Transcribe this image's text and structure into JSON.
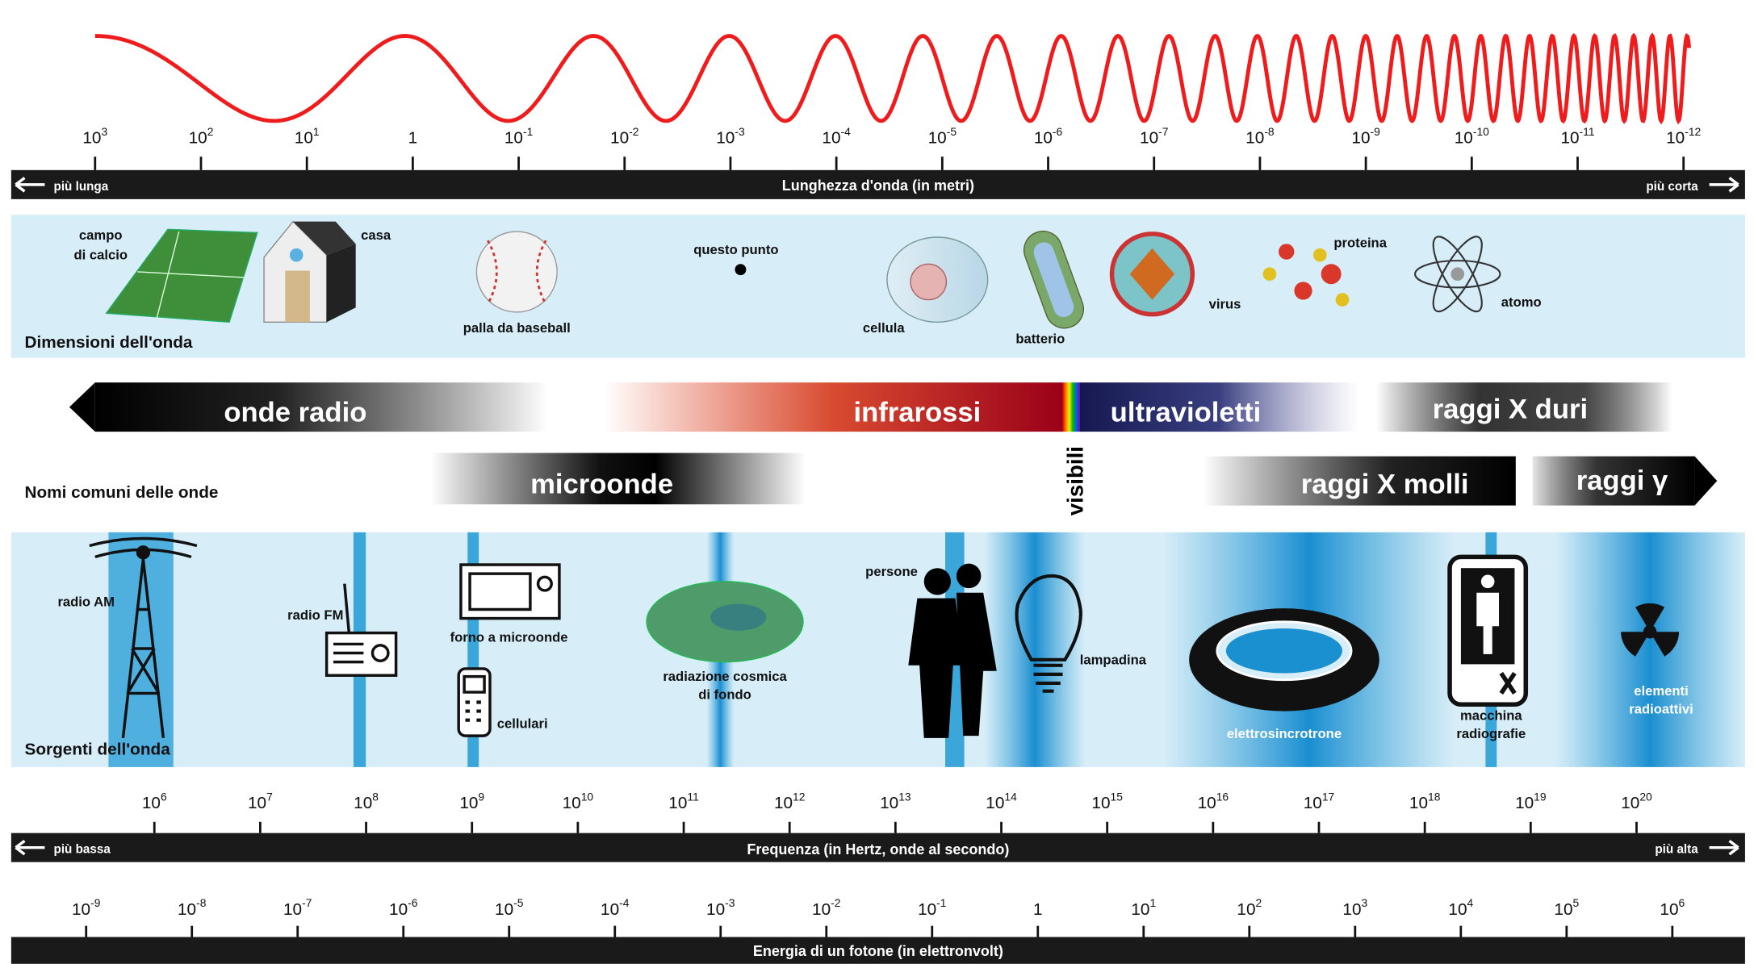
{
  "wavelength": {
    "ticks": [
      {
        "base": "10",
        "exp": "3"
      },
      {
        "base": "10",
        "exp": "2"
      },
      {
        "base": "10",
        "exp": "1"
      },
      {
        "base": "1"
      },
      {
        "base": "10",
        "exp": "-1"
      },
      {
        "base": "10",
        "exp": "-2"
      },
      {
        "base": "10",
        "exp": "-3"
      },
      {
        "base": "10",
        "exp": "-4"
      },
      {
        "base": "10",
        "exp": "-5"
      },
      {
        "base": "10",
        "exp": "-6"
      },
      {
        "base": "10",
        "exp": "-7"
      },
      {
        "base": "10",
        "exp": "-8"
      },
      {
        "base": "10",
        "exp": "-9"
      },
      {
        "base": "10",
        "exp": "-10"
      },
      {
        "base": "10",
        "exp": "-11"
      },
      {
        "base": "10",
        "exp": "-12"
      }
    ],
    "left": "più lunga",
    "title": "Lunghezza d'onda (in metri)",
    "right": "più corta"
  },
  "sizes": {
    "title": "Dimensioni dell'onda",
    "field": [
      "campo",
      "di calcio"
    ],
    "house": "casa",
    "ball": "palla da baseball",
    "dot": "questo punto",
    "cell": "cellula",
    "bacterium": "batterio",
    "virus": "virus",
    "protein": "proteina",
    "atom": "atomo"
  },
  "names": {
    "title": "Nomi comuni delle onde",
    "radio": "onde radio",
    "infrared": "infrarossi",
    "visible": "visibili",
    "ultraviolet": "ultravioletti",
    "hard_x": "raggi X duri",
    "microwave": "microonde",
    "soft_x": "raggi X molli",
    "gamma": "raggi γ"
  },
  "sources": {
    "title": "Sorgenti dell'onda",
    "am": "radio AM",
    "fm": "radio FM",
    "microwave_oven": "forno a microonde",
    "phones": "cellulari",
    "cmb": [
      "radiazione cosmica",
      "di fondo"
    ],
    "people": "persone",
    "bulb": "lampadina",
    "synchrotron": "elettrosincrotrone",
    "xray": [
      "macchina",
      "radiografie"
    ],
    "radioactive": [
      "elementi",
      "radioattivi"
    ]
  },
  "frequency": {
    "ticks": [
      {
        "base": "10",
        "exp": "6"
      },
      {
        "base": "10",
        "exp": "7"
      },
      {
        "base": "10",
        "exp": "8"
      },
      {
        "base": "10",
        "exp": "9"
      },
      {
        "base": "10",
        "exp": "10"
      },
      {
        "base": "10",
        "exp": "11"
      },
      {
        "base": "10",
        "exp": "12"
      },
      {
        "base": "10",
        "exp": "13"
      },
      {
        "base": "10",
        "exp": "14"
      },
      {
        "base": "10",
        "exp": "15"
      },
      {
        "base": "10",
        "exp": "16"
      },
      {
        "base": "10",
        "exp": "17"
      },
      {
        "base": "10",
        "exp": "18"
      },
      {
        "base": "10",
        "exp": "19"
      },
      {
        "base": "10",
        "exp": "20"
      }
    ],
    "left": "più bassa",
    "title": "Frequenza (in Hertz, onde al secondo)",
    "right": "più alta"
  },
  "energy": {
    "ticks": [
      {
        "base": "10",
        "exp": "-9"
      },
      {
        "base": "10",
        "exp": "-8"
      },
      {
        "base": "10",
        "exp": "-7"
      },
      {
        "base": "10",
        "exp": "-6"
      },
      {
        "base": "10",
        "exp": "-5"
      },
      {
        "base": "10",
        "exp": "-4"
      },
      {
        "base": "10",
        "exp": "-3"
      },
      {
        "base": "10",
        "exp": "-2"
      },
      {
        "base": "10",
        "exp": "-1"
      },
      {
        "base": "1"
      },
      {
        "base": "10",
        "exp": "1"
      },
      {
        "base": "10",
        "exp": "2"
      },
      {
        "base": "10",
        "exp": "3"
      },
      {
        "base": "10",
        "exp": "4"
      },
      {
        "base": "10",
        "exp": "5"
      },
      {
        "base": "10",
        "exp": "6"
      }
    ],
    "title": "Energia di un fotone (in elettronvolt)"
  }
}
